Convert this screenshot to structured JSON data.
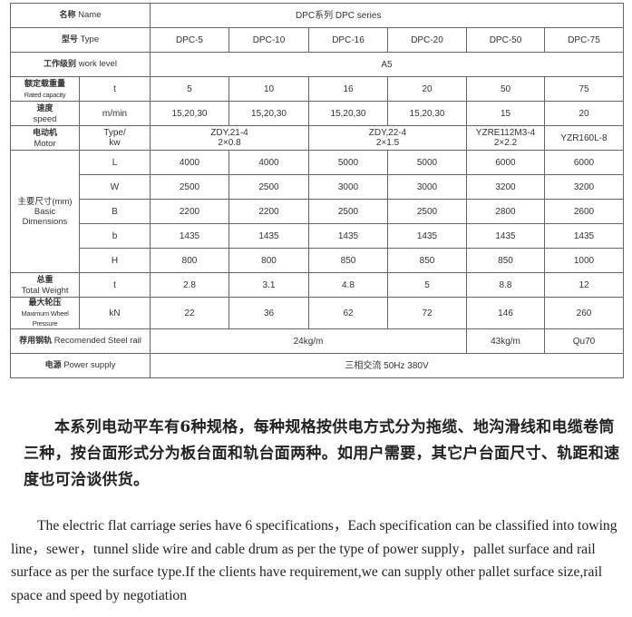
{
  "table": {
    "name_label_cn": "名称",
    "name_label_en": "Name",
    "series_label": "DPC系列 DPC series",
    "type_label_cn": "型号",
    "type_label_en": "Type",
    "models": [
      "DPC-5",
      "DPC-10",
      "DPC-16",
      "DPC-20",
      "DPC-50",
      "DPC-75"
    ],
    "work_level_label_cn": "工作级别",
    "work_level_label_en": "work level",
    "work_level": "A5",
    "rated_capacity": {
      "label_cn": "额定载重量",
      "label_en": "Rated capacity",
      "unit": "t",
      "values": [
        "5",
        "10",
        "16",
        "20",
        "50",
        "75"
      ]
    },
    "speed": {
      "label_cn": "速度",
      "label_en": "speed",
      "unit": "m/min",
      "values": [
        "15,20,30",
        "15,20,30",
        "15,20,30",
        "15,20,30",
        "15",
        "20"
      ]
    },
    "motor": {
      "label_cn": "电动机",
      "label_en": "Motor",
      "unit_line1": "Type/",
      "unit_line2": "kw",
      "values": [
        {
          "line1": "ZDY,21-4",
          "line2": "2×0.8",
          "span": 2
        },
        {
          "line1": "ZDY,22-4",
          "line2": "2×1.5",
          "span": 2
        },
        {
          "line1": "YZRE112M3-4",
          "line2": "2×2.2",
          "span": 1
        },
        {
          "line1": "YZR160L-8",
          "line2": "",
          "span": 1
        }
      ]
    },
    "dimensions": {
      "label_cn": "主要尺寸(mm)",
      "label_en_1": "Basic",
      "label_en_2": "Dimensions",
      "rows": [
        {
          "unit": "L",
          "values": [
            "4000",
            "4000",
            "5000",
            "5000",
            "6000",
            "6000"
          ]
        },
        {
          "unit": "W",
          "values": [
            "2500",
            "2500",
            "3000",
            "3000",
            "3200",
            "3200"
          ]
        },
        {
          "unit": "B",
          "values": [
            "2200",
            "2200",
            "2500",
            "2500",
            "2800",
            "2600"
          ]
        },
        {
          "unit": "b",
          "values": [
            "1435",
            "1435",
            "1435",
            "1435",
            "1435",
            "1435"
          ]
        },
        {
          "unit": "H",
          "values": [
            "800",
            "800",
            "850",
            "850",
            "850",
            "1000"
          ]
        }
      ]
    },
    "total_weight": {
      "label_cn": "总重",
      "label_en": "Total Weight",
      "unit": "t",
      "values": [
        "2.8",
        "3.1",
        "4.8",
        "5",
        "8.8",
        "12"
      ]
    },
    "wheel_pressure": {
      "label_cn": "最大轮压",
      "label_en": "Maximum Wheel Pressure",
      "unit": "kN",
      "values": [
        "22",
        "36",
        "62",
        "72",
        "146",
        "260"
      ]
    },
    "steel_rail": {
      "label_cn": "荐用钢轨",
      "label_en": "Recomended Steel rail",
      "values": [
        {
          "text": "24kg/m",
          "span": 4
        },
        {
          "text": "43kg/m",
          "span": 1
        },
        {
          "text": "Qu70",
          "span": 1
        }
      ]
    },
    "power_supply": {
      "label_cn": "电源",
      "label_en": "Power supply",
      "value": "三相交流 50Hz 380V"
    }
  },
  "paragraph_cn": "本系列电动平车有6种规格，每种规格按供电方式分为拖缆、地沟滑线和电缆卷筒三种，按台面形式分为板台面和轨台面两种。如用户需要，其它户台面尺寸、轨距和速度也可洽谈供货。",
  "paragraph_en": "The electric flat carriage series have 6 specifications，Each specification can be  classified into towing line，sewer，tunnel slide wire and cable drum as per the type of power supply，pallet surface and rail surface as per the surface type.If the clients  have requirement,we can supply other  pallet surface size,rail space and speed by  negotiation"
}
